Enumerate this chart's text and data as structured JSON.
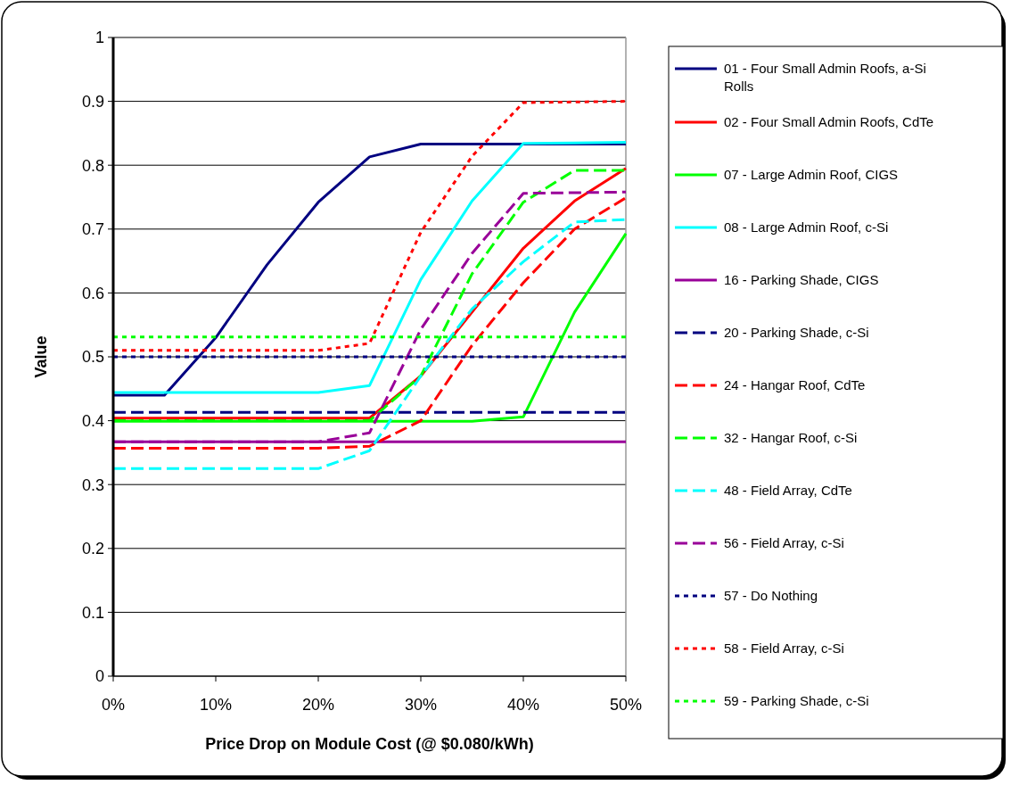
{
  "chart_data": {
    "type": "line",
    "xlabel": "Price Drop on Module Cost (@ $0.080/kWh)",
    "ylabel": "Value",
    "x": [
      0,
      5,
      10,
      15,
      20,
      25,
      30,
      35,
      40,
      45,
      50
    ],
    "xlim": [
      0,
      50
    ],
    "xticks": [
      {
        "value": 0,
        "label": "0%"
      },
      {
        "value": 10,
        "label": "10%"
      },
      {
        "value": 20,
        "label": "20%"
      },
      {
        "value": 30,
        "label": "30%"
      },
      {
        "value": 40,
        "label": "40%"
      },
      {
        "value": 50,
        "label": "50%"
      }
    ],
    "ylim": [
      0,
      1
    ],
    "yticks": [
      0,
      0.1,
      0.2,
      0.3,
      0.4,
      0.5,
      0.6,
      0.7,
      0.8,
      0.9,
      1
    ],
    "grid": "y",
    "legend": "right",
    "marker": "none",
    "series": [
      {
        "name": "01 - Four Small Admin Roofs, a-Si Rolls",
        "color": "#000080",
        "line_style": "solid",
        "values": [
          0.44,
          0.44,
          0.53,
          0.644,
          0.742,
          0.813,
          0.833,
          0.833,
          0.833,
          0.833,
          0.833
        ]
      },
      {
        "name": "02 - Four Small Admin Roofs, CdTe",
        "color": "#ff0000",
        "line_style": "solid",
        "values": [
          0.404,
          0.404,
          0.404,
          0.404,
          0.404,
          0.404,
          0.47,
          0.57,
          0.67,
          0.744,
          0.795
        ]
      },
      {
        "name": "07 - Large Admin Roof, CIGS",
        "color": "#00ff00",
        "line_style": "solid",
        "values": [
          0.399,
          0.399,
          0.399,
          0.399,
          0.399,
          0.399,
          0.399,
          0.399,
          0.406,
          0.57,
          0.693
        ]
      },
      {
        "name": "08 - Large Admin Roof, c-Si",
        "color": "#00ffff",
        "line_style": "solid",
        "values": [
          0.444,
          0.444,
          0.444,
          0.444,
          0.444,
          0.455,
          0.621,
          0.744,
          0.834,
          0.835,
          0.836
        ]
      },
      {
        "name": "16 - Parking Shade, CIGS",
        "color": "#990099",
        "line_style": "solid",
        "values": [
          0.367,
          0.367,
          0.367,
          0.367,
          0.367,
          0.367,
          0.367,
          0.367,
          0.367,
          0.367,
          0.367
        ]
      },
      {
        "name": "20 - Parking Shade, c-Si",
        "color": "#000080",
        "line_style": "dashed",
        "values": [
          0.413,
          0.413,
          0.413,
          0.413,
          0.413,
          0.413,
          0.413,
          0.413,
          0.413,
          0.413,
          0.413
        ]
      },
      {
        "name": "24 - Hangar Roof, CdTe",
        "color": "#ff0000",
        "line_style": "dashed",
        "values": [
          0.357,
          0.357,
          0.357,
          0.357,
          0.357,
          0.36,
          0.4,
          0.518,
          0.616,
          0.7,
          0.749
        ]
      },
      {
        "name": "32 - Hangar Roof, c-Si",
        "color": "#00ff00",
        "line_style": "dashed",
        "values": [
          0.4,
          0.4,
          0.4,
          0.4,
          0.4,
          0.4,
          0.47,
          0.63,
          0.742,
          0.792,
          0.792
        ]
      },
      {
        "name": "48 - Field Array, CdTe",
        "color": "#00ffff",
        "line_style": "dashed",
        "values": [
          0.325,
          0.325,
          0.325,
          0.325,
          0.325,
          0.353,
          0.47,
          0.575,
          0.649,
          0.711,
          0.715
        ]
      },
      {
        "name": "56 - Field Array, c-Si",
        "color": "#990099",
        "line_style": "dashed",
        "values": [
          0.367,
          0.367,
          0.367,
          0.367,
          0.367,
          0.381,
          0.543,
          0.662,
          0.756,
          0.757,
          0.758
        ]
      },
      {
        "name": "57 - Do Nothing",
        "color": "#000080",
        "line_style": "dotted",
        "values": [
          0.5,
          0.5,
          0.5,
          0.5,
          0.5,
          0.5,
          0.5,
          0.5,
          0.5,
          0.5,
          0.5
        ]
      },
      {
        "name": "58 - Field Array, c-Si",
        "color": "#ff0000",
        "line_style": "dotted",
        "values": [
          0.51,
          0.51,
          0.51,
          0.51,
          0.51,
          0.521,
          0.695,
          0.814,
          0.898,
          0.899,
          0.9
        ]
      },
      {
        "name": "59 - Parking Shade, c-Si",
        "color": "#00ff00",
        "line_style": "dotted",
        "values": [
          0.531,
          0.531,
          0.531,
          0.531,
          0.531,
          0.531,
          0.531,
          0.531,
          0.531,
          0.531,
          0.531
        ]
      }
    ]
  }
}
